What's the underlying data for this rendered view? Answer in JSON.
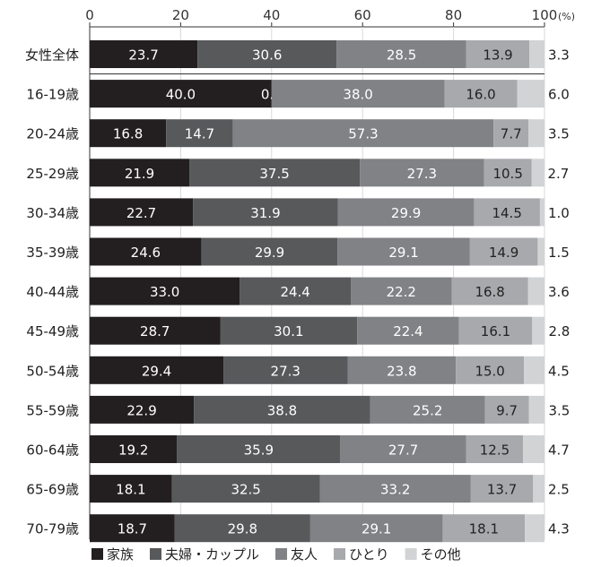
{
  "chart_data": {
    "type": "bar",
    "orientation": "horizontal",
    "stacked": true,
    "x_axis": {
      "ticks": [
        "0",
        "20",
        "40",
        "60",
        "80",
        "100"
      ],
      "unit": "(%)",
      "range": [
        0,
        100
      ],
      "position": "top"
    },
    "grid": true,
    "legend_position": "bottom",
    "categories": [
      "女性全体",
      "16-19歳",
      "20-24歳",
      "25-29歳",
      "30-34歳",
      "35-39歳",
      "40-44歳",
      "45-49歳",
      "50-54歳",
      "55-59歳",
      "60-64歳",
      "65-69歳",
      "70-79歳"
    ],
    "series": [
      {
        "name": "家族",
        "color": "#231f20",
        "values": [
          23.7,
          40.0,
          16.8,
          21.9,
          22.7,
          24.6,
          33.0,
          28.7,
          29.4,
          22.9,
          19.2,
          18.1,
          18.7
        ],
        "labels": [
          "23.7",
          "40.0",
          "16.8",
          "21.9",
          "22.7",
          "24.6",
          "33.0",
          "28.7",
          "29.4",
          "22.9",
          "19.2",
          "18.1",
          "18.7"
        ]
      },
      {
        "name": "夫婦・カップル",
        "color": "#58595b",
        "values": [
          30.6,
          0.0,
          14.7,
          37.5,
          31.9,
          29.9,
          24.4,
          30.1,
          27.3,
          38.8,
          35.9,
          32.5,
          29.8
        ],
        "labels": [
          "30.6",
          "0.0",
          "14.7",
          "37.5",
          "31.9",
          "29.9",
          "24.4",
          "30.1",
          "27.3",
          "38.8",
          "35.9",
          "32.5",
          "29.8"
        ]
      },
      {
        "name": "友人",
        "color": "#808285",
        "values": [
          28.5,
          38.0,
          57.3,
          27.3,
          29.9,
          29.1,
          22.2,
          22.4,
          23.8,
          25.2,
          27.7,
          33.2,
          29.1
        ],
        "labels": [
          "28.5",
          "38.0",
          "57.3",
          "27.3",
          "29.9",
          "29.1",
          "22.2",
          "22.4",
          "23.8",
          "25.2",
          "27.7",
          "33.2",
          "29.1"
        ]
      },
      {
        "name": "ひとり",
        "color": "#a7a9ac",
        "values": [
          13.9,
          16.0,
          7.7,
          10.5,
          14.5,
          14.9,
          16.8,
          16.1,
          15.0,
          9.7,
          12.5,
          13.7,
          18.1
        ],
        "labels": [
          "13.9",
          "16.0",
          "7.7",
          "10.5",
          "14.5",
          "14.9",
          "16.8",
          "16.1",
          "15.0",
          "9.7",
          "12.5",
          "13.7",
          "18.1"
        ]
      },
      {
        "name": "その他",
        "color": "#d1d3d4",
        "values": [
          3.3,
          6.0,
          3.5,
          2.7,
          1.0,
          1.5,
          3.6,
          2.8,
          4.5,
          3.5,
          4.7,
          2.5,
          4.3
        ],
        "labels": [
          "3.3",
          "6.0",
          "3.5",
          "2.7",
          "1.0",
          "1.5",
          "3.6",
          "2.8",
          "4.5",
          "3.5",
          "4.7",
          "2.5",
          "4.3"
        ]
      }
    ]
  }
}
